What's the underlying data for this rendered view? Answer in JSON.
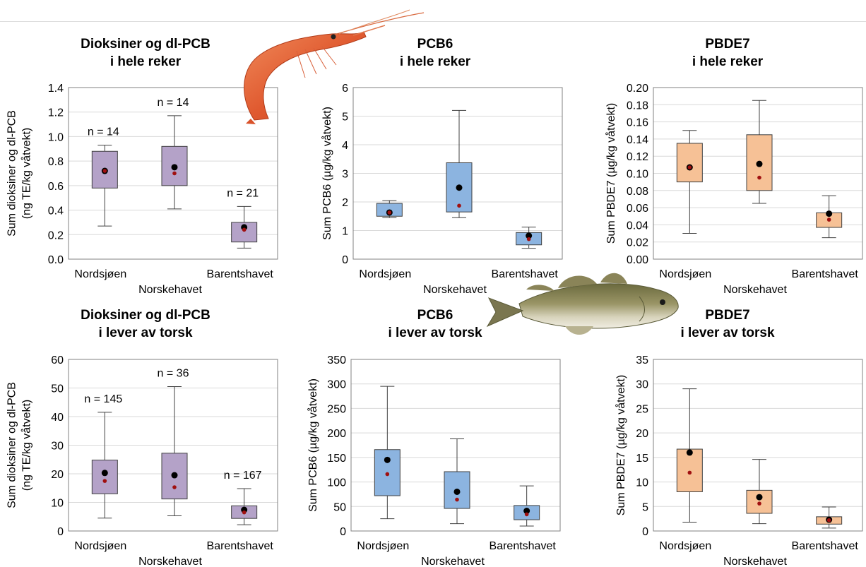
{
  "colors": {
    "purple_fill": "#b4a2c8",
    "blue_fill": "#8cb4e0",
    "orange_fill": "#f6c196",
    "box_stroke": "#404040",
    "grid": "#d9d9d9",
    "mean_dot": "#000000",
    "median_dot": "#a01010"
  },
  "illustrations": [
    "shrimp-image",
    "cod-fish-image"
  ],
  "chart_data": [
    {
      "type": "box",
      "title": [
        "Dioksiner og dl-PCB",
        "i hele reker"
      ],
      "ylabel": [
        "Sum dioksiner og dl-PCB",
        "(ng TE/kg våtvekt)"
      ],
      "ylim": [
        0,
        1.4
      ],
      "yticks": [
        "0.0",
        "0.2",
        "0.4",
        "0.6",
        "0.8",
        "1.0",
        "1.2",
        "1.4"
      ],
      "fill": "purple",
      "categories": [
        "Nordsjøen",
        "Norskehavet",
        "Barentshavet"
      ],
      "boxes": [
        {
          "min": 0.27,
          "q1": 0.58,
          "q3": 0.88,
          "max": 0.93,
          "mean": 0.72,
          "median": 0.72,
          "n": "n = 14"
        },
        {
          "min": 0.41,
          "q1": 0.6,
          "q3": 0.92,
          "max": 1.17,
          "mean": 0.75,
          "median": 0.7,
          "n": "n = 14"
        },
        {
          "min": 0.09,
          "q1": 0.14,
          "q3": 0.3,
          "max": 0.43,
          "mean": 0.26,
          "median": 0.24,
          "n": "n = 21"
        }
      ]
    },
    {
      "type": "box",
      "title": [
        "PCB6",
        "i hele reker"
      ],
      "ylabel": [
        "Sum PCB6 (µg/kg våtvekt)"
      ],
      "ylim": [
        0,
        6
      ],
      "yticks": [
        "0",
        "1",
        "2",
        "3",
        "4",
        "5",
        "6"
      ],
      "fill": "blue",
      "categories": [
        "Nordsjøen",
        "Norskehavet",
        "Barentshavet"
      ],
      "boxes": [
        {
          "min": 1.45,
          "q1": 1.5,
          "q3": 1.95,
          "max": 2.05,
          "mean": 1.63,
          "median": 1.63,
          "n": ""
        },
        {
          "min": 1.45,
          "q1": 1.65,
          "q3": 3.37,
          "max": 5.2,
          "mean": 2.5,
          "median": 1.87,
          "n": ""
        },
        {
          "min": 0.38,
          "q1": 0.5,
          "q3": 0.93,
          "max": 1.12,
          "mean": 0.82,
          "median": 0.7,
          "n": ""
        }
      ]
    },
    {
      "type": "box",
      "title": [
        "PBDE7",
        "i hele reker"
      ],
      "ylabel": [
        "Sum PBDE7 (µg/kg våtvekt)"
      ],
      "ylim": [
        0,
        0.2
      ],
      "yticks": [
        "0.00",
        "0.02",
        "0.04",
        "0.06",
        "0.08",
        "0.10",
        "0.12",
        "0.14",
        "0.16",
        "0.18",
        "0.20"
      ],
      "fill": "orange",
      "categories": [
        "Nordsjøen",
        "Norskehavet",
        "Barentshavet"
      ],
      "boxes": [
        {
          "min": 0.03,
          "q1": 0.09,
          "q3": 0.135,
          "max": 0.15,
          "mean": 0.107,
          "median": 0.107,
          "n": ""
        },
        {
          "min": 0.065,
          "q1": 0.08,
          "q3": 0.145,
          "max": 0.185,
          "mean": 0.111,
          "median": 0.095,
          "n": ""
        },
        {
          "min": 0.025,
          "q1": 0.037,
          "q3": 0.054,
          "max": 0.074,
          "mean": 0.053,
          "median": 0.046,
          "n": ""
        }
      ]
    },
    {
      "type": "box",
      "title": [
        "Dioksiner og dl-PCB",
        "i lever av torsk"
      ],
      "ylabel": [
        "Sum dioksiner og dl-PCB",
        "(ng TE/kg våtvekt)"
      ],
      "ylim": [
        0,
        60
      ],
      "yticks": [
        "0",
        "10",
        "20",
        "30",
        "40",
        "50",
        "60"
      ],
      "fill": "purple",
      "categories": [
        "Nordsjøen",
        "Norskehavet",
        "Barentshavet"
      ],
      "boxes": [
        {
          "min": 4.5,
          "q1": 13.0,
          "q3": 24.8,
          "max": 41.5,
          "mean": 20.3,
          "median": 17.5,
          "n": "n = 145"
        },
        {
          "min": 5.3,
          "q1": 11.2,
          "q3": 27.2,
          "max": 50.5,
          "mean": 19.5,
          "median": 15.3,
          "n": "n = 36"
        },
        {
          "min": 2.2,
          "q1": 4.4,
          "q3": 8.8,
          "max": 14.8,
          "mean": 7.4,
          "median": 6.5,
          "n": "n = 167"
        }
      ]
    },
    {
      "type": "box",
      "title": [
        "PCB6",
        "i lever av torsk"
      ],
      "ylabel": [
        "Sum PCB6 (µg/kg våtvekt)"
      ],
      "ylim": [
        0,
        350
      ],
      "yticks": [
        "0",
        "50",
        "100",
        "150",
        "200",
        "250",
        "300",
        "350"
      ],
      "fill": "blue",
      "categories": [
        "Nordsjøen",
        "Norskehavet",
        "Barentshavet"
      ],
      "boxes": [
        {
          "min": 25,
          "q1": 72,
          "q3": 166,
          "max": 295,
          "mean": 145,
          "median": 116,
          "n": ""
        },
        {
          "min": 15,
          "q1": 46,
          "q3": 121,
          "max": 188,
          "mean": 80,
          "median": 64,
          "n": ""
        },
        {
          "min": 10,
          "q1": 23,
          "q3": 52,
          "max": 92,
          "mean": 41,
          "median": 34,
          "n": ""
        }
      ]
    },
    {
      "type": "box",
      "title": [
        "PBDE7",
        "i lever av torsk"
      ],
      "ylabel": [
        "Sum PBDE7 (µg/kg våtvekt)"
      ],
      "ylim": [
        0,
        35
      ],
      "yticks": [
        "0",
        "5",
        "10",
        "15",
        "20",
        "25",
        "30",
        "35"
      ],
      "fill": "orange",
      "categories": [
        "Nordsjøen",
        "Norskehavet",
        "Barentshavet"
      ],
      "boxes": [
        {
          "min": 1.8,
          "q1": 8.0,
          "q3": 16.7,
          "max": 29.0,
          "mean": 16.0,
          "median": 11.9,
          "n": ""
        },
        {
          "min": 1.5,
          "q1": 3.6,
          "q3": 8.3,
          "max": 14.6,
          "mean": 6.9,
          "median": 5.6,
          "n": ""
        },
        {
          "min": 0.6,
          "q1": 1.4,
          "q3": 2.9,
          "max": 4.9,
          "mean": 2.3,
          "median": 2.2,
          "n": ""
        }
      ]
    }
  ]
}
